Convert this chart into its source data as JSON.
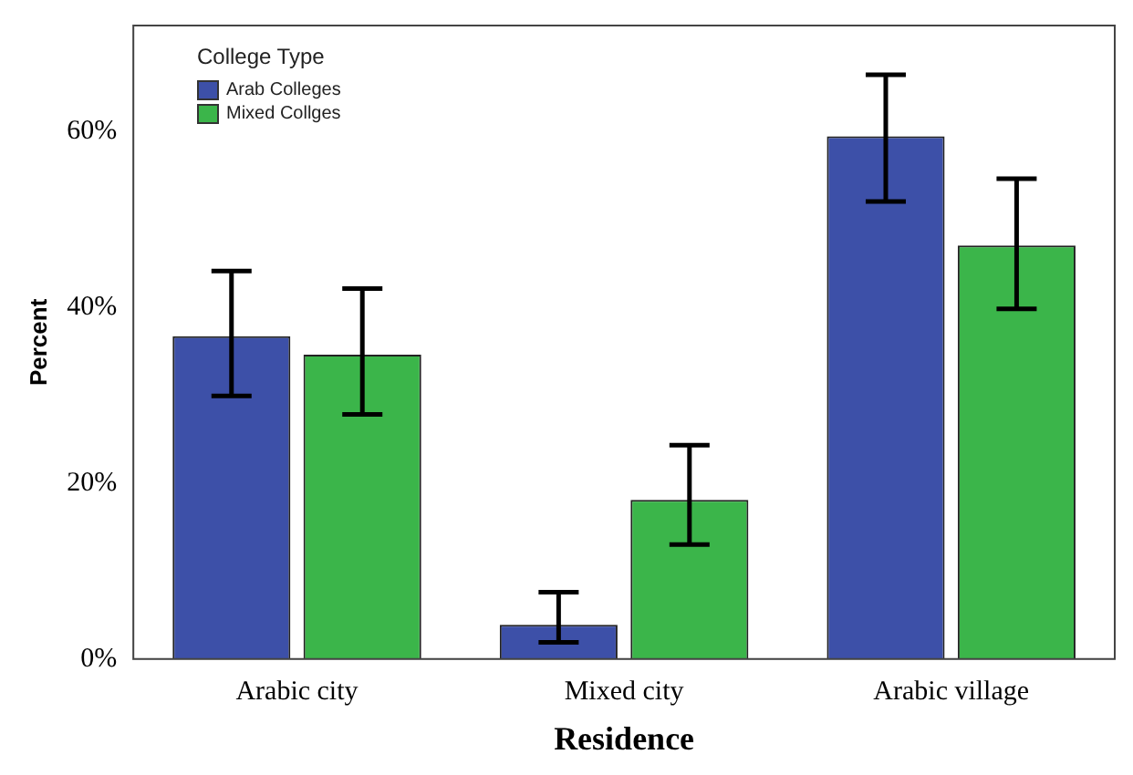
{
  "chart_data": {
    "type": "bar",
    "xlabel": "Residence",
    "ylabel": "Percent",
    "legend_title": "College Type",
    "legend": "top left",
    "grid": false,
    "categories": [
      "Arabic city",
      "Mixed city",
      "Arabic village"
    ],
    "series": [
      {
        "name": "Arab Colleges",
        "color": "#3d50a8",
        "values": [
          36.7,
          3.9,
          59.4
        ],
        "errors": [
          [
            29.9,
            44.1
          ],
          [
            1.9,
            7.6
          ],
          [
            52.0,
            66.4
          ]
        ]
      },
      {
        "name": "Mixed Collges",
        "color": "#3bb54a",
        "values": [
          34.6,
          18.1,
          47.0
        ],
        "errors": [
          [
            27.8,
            42.1
          ],
          [
            13.0,
            24.3
          ],
          [
            39.8,
            54.6
          ]
        ]
      }
    ],
    "ylim": [
      0,
      72
    ],
    "yticks": [
      {
        "value": 0,
        "label": "0%"
      },
      {
        "value": 20,
        "label": "20%"
      },
      {
        "value": 40,
        "label": "40%"
      },
      {
        "value": 60,
        "label": "60%"
      }
    ]
  }
}
